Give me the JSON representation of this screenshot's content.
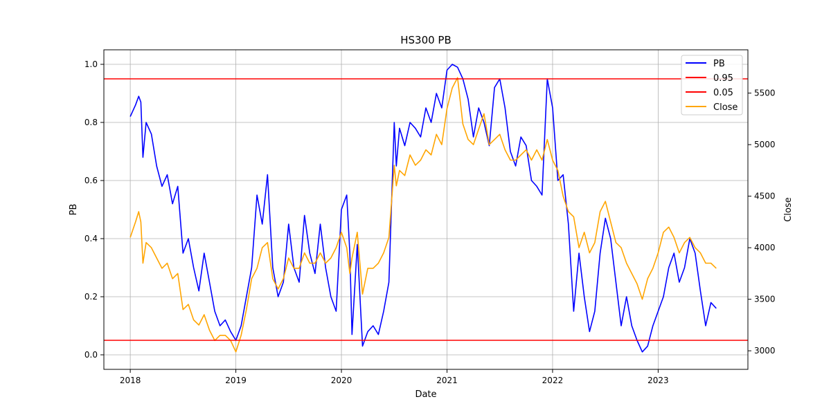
{
  "chart_data": {
    "type": "line",
    "title": "HS300 PB",
    "xlabel": "Date",
    "ylabel_left": "PB",
    "ylabel_right": "Close",
    "x_range": [
      2017.75,
      2023.85
    ],
    "ylim_left": [
      -0.05,
      1.05
    ],
    "ylim_right": [
      2820,
      5920
    ],
    "xticks": [
      2018,
      2019,
      2020,
      2021,
      2022,
      2023
    ],
    "xtick_labels": [
      "2018",
      "2019",
      "2020",
      "2021",
      "2022",
      "2023"
    ],
    "yticks_left": [
      0.0,
      0.2,
      0.4,
      0.6,
      0.8,
      1.0
    ],
    "ytick_labels_left": [
      "0.0",
      "0.2",
      "0.4",
      "0.6",
      "0.8",
      "1.0"
    ],
    "yticks_right": [
      3000,
      3500,
      4000,
      4500,
      5000,
      5500
    ],
    "ytick_labels_right": [
      "3000",
      "3500",
      "4000",
      "4500",
      "5000",
      "5500"
    ],
    "grid": true,
    "legend_position": "top-right",
    "hlines": [
      {
        "name": "0.95",
        "value": 0.95,
        "color": "#ff0000"
      },
      {
        "name": "0.05",
        "value": 0.05,
        "color": "#ff0000"
      }
    ],
    "series": [
      {
        "name": "PB",
        "axis": "left",
        "color": "#0000ff",
        "x": [
          2018.0,
          2018.05,
          2018.08,
          2018.1,
          2018.12,
          2018.15,
          2018.2,
          2018.25,
          2018.3,
          2018.35,
          2018.4,
          2018.45,
          2018.5,
          2018.55,
          2018.6,
          2018.65,
          2018.7,
          2018.75,
          2018.8,
          2018.85,
          2018.9,
          2018.95,
          2019.0,
          2019.05,
          2019.1,
          2019.15,
          2019.2,
          2019.25,
          2019.3,
          2019.35,
          2019.4,
          2019.45,
          2019.5,
          2019.55,
          2019.6,
          2019.65,
          2019.7,
          2019.75,
          2019.8,
          2019.85,
          2019.9,
          2019.95,
          2020.0,
          2020.05,
          2020.08,
          2020.1,
          2020.15,
          2020.2,
          2020.25,
          2020.3,
          2020.35,
          2020.4,
          2020.45,
          2020.5,
          2020.52,
          2020.55,
          2020.6,
          2020.65,
          2020.7,
          2020.75,
          2020.8,
          2020.85,
          2020.9,
          2020.95,
          2021.0,
          2021.05,
          2021.1,
          2021.15,
          2021.2,
          2021.25,
          2021.3,
          2021.35,
          2021.4,
          2021.45,
          2021.5,
          2021.55,
          2021.6,
          2021.65,
          2021.7,
          2021.75,
          2021.8,
          2021.85,
          2021.9,
          2021.95,
          2022.0,
          2022.05,
          2022.1,
          2022.15,
          2022.2,
          2022.25,
          2022.3,
          2022.35,
          2022.4,
          2022.45,
          2022.5,
          2022.55,
          2022.6,
          2022.65,
          2022.7,
          2022.75,
          2022.8,
          2022.85,
          2022.9,
          2022.95,
          2023.0,
          2023.05,
          2023.1,
          2023.15,
          2023.2,
          2023.25,
          2023.3,
          2023.35,
          2023.4,
          2023.45,
          2023.5,
          2023.55
        ],
        "values": [
          0.82,
          0.86,
          0.89,
          0.87,
          0.68,
          0.8,
          0.76,
          0.65,
          0.58,
          0.62,
          0.52,
          0.58,
          0.35,
          0.4,
          0.3,
          0.22,
          0.35,
          0.25,
          0.15,
          0.1,
          0.12,
          0.08,
          0.05,
          0.1,
          0.2,
          0.3,
          0.55,
          0.45,
          0.62,
          0.3,
          0.2,
          0.25,
          0.45,
          0.3,
          0.25,
          0.48,
          0.35,
          0.28,
          0.45,
          0.3,
          0.2,
          0.15,
          0.5,
          0.55,
          0.35,
          0.07,
          0.38,
          0.03,
          0.08,
          0.1,
          0.07,
          0.15,
          0.25,
          0.8,
          0.65,
          0.78,
          0.72,
          0.8,
          0.78,
          0.75,
          0.85,
          0.8,
          0.9,
          0.85,
          0.98,
          1.0,
          0.99,
          0.95,
          0.88,
          0.75,
          0.85,
          0.8,
          0.72,
          0.92,
          0.95,
          0.85,
          0.7,
          0.65,
          0.75,
          0.72,
          0.6,
          0.58,
          0.55,
          0.95,
          0.85,
          0.6,
          0.62,
          0.45,
          0.15,
          0.35,
          0.2,
          0.08,
          0.15,
          0.35,
          0.47,
          0.4,
          0.25,
          0.1,
          0.2,
          0.1,
          0.05,
          0.01,
          0.03,
          0.1,
          0.15,
          0.2,
          0.3,
          0.35,
          0.25,
          0.3,
          0.4,
          0.35,
          0.22,
          0.1,
          0.18,
          0.16
        ]
      },
      {
        "name": "Close",
        "axis": "right",
        "color": "#ffa500",
        "x": [
          2018.0,
          2018.05,
          2018.08,
          2018.1,
          2018.12,
          2018.15,
          2018.2,
          2018.25,
          2018.3,
          2018.35,
          2018.4,
          2018.45,
          2018.5,
          2018.55,
          2018.6,
          2018.65,
          2018.7,
          2018.75,
          2018.8,
          2018.85,
          2018.9,
          2018.95,
          2019.0,
          2019.05,
          2019.1,
          2019.15,
          2019.2,
          2019.25,
          2019.3,
          2019.35,
          2019.4,
          2019.45,
          2019.5,
          2019.55,
          2019.6,
          2019.65,
          2019.7,
          2019.75,
          2019.8,
          2019.85,
          2019.9,
          2019.95,
          2020.0,
          2020.05,
          2020.08,
          2020.1,
          2020.15,
          2020.2,
          2020.25,
          2020.3,
          2020.35,
          2020.4,
          2020.45,
          2020.5,
          2020.52,
          2020.55,
          2020.6,
          2020.65,
          2020.7,
          2020.75,
          2020.8,
          2020.85,
          2020.9,
          2020.95,
          2021.0,
          2021.05,
          2021.1,
          2021.15,
          2021.2,
          2021.25,
          2021.3,
          2021.35,
          2021.4,
          2021.45,
          2021.5,
          2021.55,
          2021.6,
          2021.65,
          2021.7,
          2021.75,
          2021.8,
          2021.85,
          2021.9,
          2021.95,
          2022.0,
          2022.05,
          2022.1,
          2022.15,
          2022.2,
          2022.25,
          2022.3,
          2022.35,
          2022.4,
          2022.45,
          2022.5,
          2022.55,
          2022.6,
          2022.65,
          2022.7,
          2022.75,
          2022.8,
          2022.85,
          2022.9,
          2022.95,
          2023.0,
          2023.05,
          2023.1,
          2023.15,
          2023.2,
          2023.25,
          2023.3,
          2023.35,
          2023.4,
          2023.45,
          2023.5,
          2023.55
        ],
        "values": [
          4100,
          4250,
          4350,
          4250,
          3850,
          4050,
          4000,
          3900,
          3800,
          3850,
          3700,
          3750,
          3400,
          3450,
          3300,
          3250,
          3350,
          3200,
          3100,
          3150,
          3150,
          3100,
          2990,
          3150,
          3400,
          3700,
          3800,
          4000,
          4050,
          3700,
          3600,
          3700,
          3900,
          3800,
          3800,
          3950,
          3850,
          3850,
          3950,
          3850,
          3900,
          4000,
          4150,
          4000,
          3750,
          3900,
          4150,
          3550,
          3800,
          3800,
          3850,
          3950,
          4100,
          4800,
          4600,
          4750,
          4700,
          4900,
          4800,
          4850,
          4950,
          4900,
          5100,
          5000,
          5350,
          5550,
          5650,
          5200,
          5050,
          5000,
          5150,
          5300,
          5000,
          5050,
          5100,
          4950,
          4850,
          4850,
          4900,
          4950,
          4850,
          4950,
          4850,
          5050,
          4850,
          4750,
          4500,
          4350,
          4300,
          4000,
          4150,
          3950,
          4050,
          4350,
          4450,
          4250,
          4050,
          4000,
          3850,
          3750,
          3650,
          3500,
          3700,
          3800,
          3950,
          4150,
          4200,
          4100,
          3950,
          4050,
          4100,
          4000,
          3950,
          3850,
          3850,
          3800
        ]
      }
    ]
  }
}
